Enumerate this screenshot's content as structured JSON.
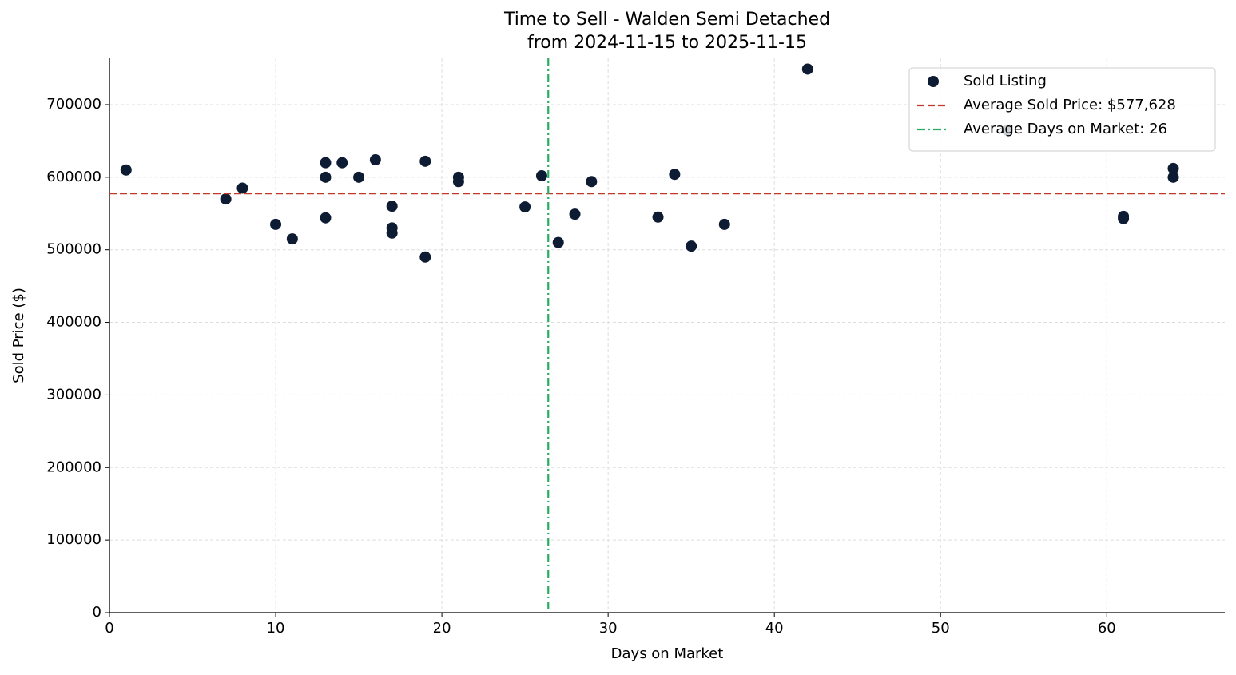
{
  "chart_data": {
    "type": "scatter",
    "title": "Time to Sell - Walden Semi Detached",
    "subtitle": "from 2024-11-15 to 2025-11-15",
    "x_label": "Days on Market",
    "y_label": "Sold Price ($)",
    "xlim": [
      0,
      67.1
    ],
    "ylim": [
      0,
      763800
    ],
    "xticks": [
      0,
      10,
      20,
      30,
      40,
      50,
      60
    ],
    "yticks": [
      0,
      100000,
      200000,
      300000,
      400000,
      500000,
      600000,
      700000
    ],
    "grid": true,
    "legend": "upper right",
    "series": [
      {
        "name": "Sold Listing",
        "color": "#0d1b33",
        "x": [
          1,
          7,
          8,
          10,
          11,
          13,
          13,
          13,
          14,
          15,
          16,
          17,
          17,
          17,
          19,
          19,
          21,
          21,
          25,
          26,
          27,
          28,
          29,
          33,
          34,
          35,
          37,
          42,
          54,
          61,
          61,
          64,
          64
        ],
        "values": [
          610000,
          570000,
          585000,
          535000,
          515000,
          620000,
          600000,
          544000,
          620000,
          600000,
          624000,
          560000,
          530000,
          523000,
          622000,
          490000,
          600000,
          594000,
          559000,
          602000,
          510000,
          549000,
          594000,
          545000,
          604000,
          505000,
          535000,
          749000,
          665000,
          546000,
          543000,
          612000,
          600000
        ]
      }
    ],
    "hlines": [
      {
        "name": "Average Sold Price: $577,628",
        "value": 577628,
        "color": "#c0392b"
      }
    ],
    "vlines": [
      {
        "name": "Average Days on Market: 26",
        "value": 26.4,
        "color": "#27ae60"
      }
    ]
  }
}
